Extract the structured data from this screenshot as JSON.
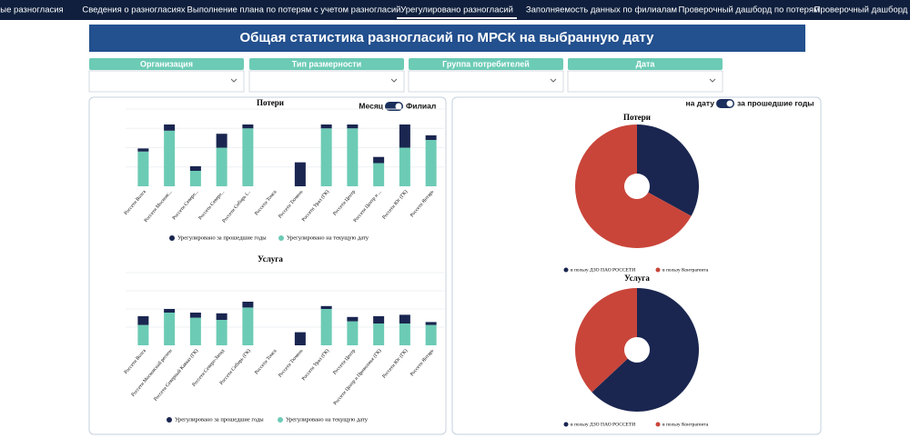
{
  "nav": {
    "tabs": [
      "ые разногласия",
      "Сведения о разногласиях",
      "Выполнение плана по потерям с учетом разногласий",
      "Урегулировано разногласий",
      "Заполняемость данных по филиалам",
      "Проверочный дашборд по потерям",
      "Проверочный дашборд"
    ],
    "active": 3
  },
  "header": {
    "title": "Общая статистика разногласий по МРСК на выбранную дату"
  },
  "filters": [
    {
      "label": "Организация"
    },
    {
      "label": "Тип размерности"
    },
    {
      "label": "Группа потребителей"
    },
    {
      "label": "Дата"
    }
  ],
  "bar_toggle": {
    "left": "Месяц",
    "right": "Филиал"
  },
  "pie_toggle": {
    "left": "на дату",
    "right": "за прошедшие годы"
  },
  "chart_data": [
    {
      "type": "bar",
      "stacked": true,
      "title": "Потери",
      "categories": [
        "Россети Волга",
        "Россети Московс...",
        "Россети Северо...",
        "Россети Северо...",
        "Россети Сибирь (...",
        "Россети Томск",
        "Россети Тюмень",
        "Россети Урал (ГК)",
        "Россети Центр",
        "Россети Центр и ...",
        "Россети Юг (ГК)",
        "Россети Янтарь"
      ],
      "series": [
        {
          "name": "Урегулировано за прошедшие годы",
          "color": "#1a2650",
          "values": [
            4,
            8,
            6,
            18,
            5,
            0,
            31,
            5,
            5,
            8,
            30,
            6
          ]
        },
        {
          "name": "Урегулировано на текущую дату",
          "color": "#6ccbb5",
          "values": [
            45,
            72,
            20,
            50,
            75,
            0,
            0,
            75,
            75,
            30,
            50,
            60
          ]
        }
      ],
      "ylim": [
        0,
        100
      ]
    },
    {
      "type": "bar",
      "stacked": true,
      "title": "Услуга",
      "categories": [
        "Россети Волга",
        "Россети Московский регион",
        "Россети Северный Кавказ (ГК)",
        "Россети Северо-Запад",
        "Россети Сибирь (ГК)",
        "Россети Томск",
        "Россети Тюмень",
        "Россети Урал (ГК)",
        "Россети Центр",
        "Россети Центр и Приволжье (ГК)",
        "Россети Юг (ГК)",
        "Россети Янтарь"
      ],
      "series": [
        {
          "name": "Урегулировано за прошедшие годы",
          "color": "#1a2650",
          "values": [
            12,
            5,
            7,
            9,
            8,
            0,
            18,
            4,
            6,
            10,
            12,
            4
          ]
        },
        {
          "name": "Урегулировано на текущую дату",
          "color": "#6ccbb5",
          "values": [
            28,
            45,
            38,
            35,
            52,
            0,
            0,
            50,
            33,
            30,
            30,
            28
          ]
        }
      ],
      "ylim": [
        0,
        100
      ]
    },
    {
      "type": "pie",
      "title": "Потери",
      "categories": [
        "в пользу ДЗО ПАО РОССЕТИ",
        "в пользу Контрагента"
      ],
      "values": [
        33,
        67
      ],
      "colors": [
        "#1a2650",
        "#c9453a"
      ]
    },
    {
      "type": "pie",
      "title": "Услуга",
      "categories": [
        "в пользу ДЗО ПАО РОССЕТИ",
        "в пользу Контрагента"
      ],
      "values": [
        63,
        37
      ],
      "colors": [
        "#1a2650",
        "#c9453a"
      ]
    }
  ]
}
